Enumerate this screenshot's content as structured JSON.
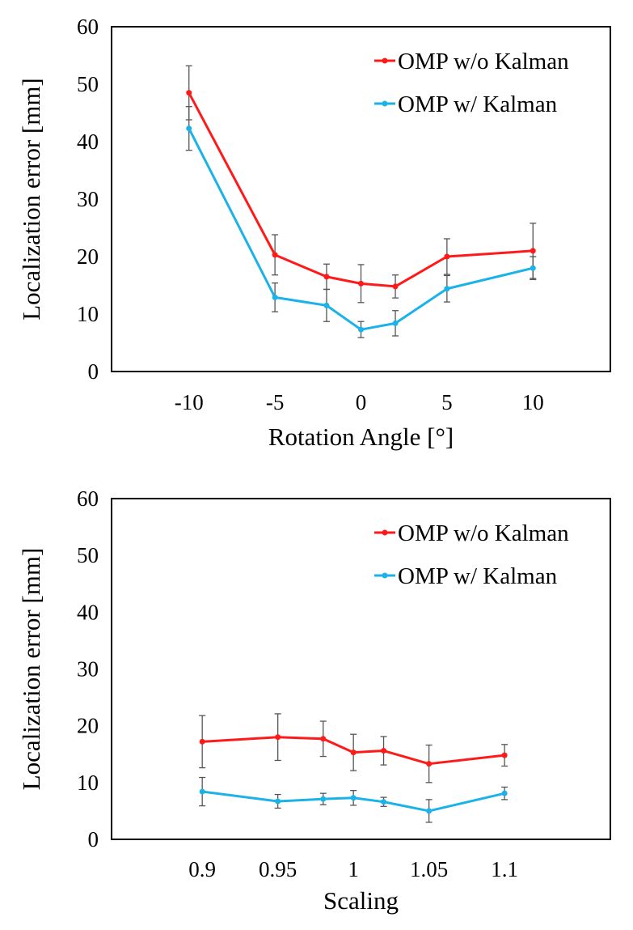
{
  "chart_data": [
    {
      "type": "line",
      "xlabel": "Rotation Angle [°]",
      "ylabel": "Localization error [mm]",
      "ylim": [
        0,
        60
      ],
      "yticks": [
        0,
        10,
        20,
        30,
        40,
        50,
        60
      ],
      "xlim": [
        -14.5,
        14.5
      ],
      "xticks": [
        -10,
        -5,
        0,
        5,
        10
      ],
      "grid": false,
      "legend_position": "top-right",
      "series": [
        {
          "name": "OMP w/o Kalman",
          "color": "#ff1a1a",
          "x": [
            -10,
            -5,
            -2,
            0,
            2,
            5,
            10
          ],
          "values": [
            48.5,
            20.3,
            16.5,
            15.3,
            14.8,
            20.0,
            21.0
          ],
          "errors": [
            4.7,
            3.5,
            2.2,
            3.3,
            2.0,
            3.1,
            4.8
          ]
        },
        {
          "name": "OMP w/ Kalman",
          "color": "#1ab2e8",
          "x": [
            -10,
            -5,
            -2,
            0,
            2,
            5,
            10
          ],
          "values": [
            42.3,
            12.9,
            11.5,
            7.3,
            8.4,
            14.4,
            18.0
          ],
          "errors": [
            3.8,
            2.5,
            2.8,
            1.4,
            2.2,
            2.3,
            2.0
          ]
        }
      ]
    },
    {
      "type": "line",
      "xlabel": "Scaling",
      "ylabel": "Localization error [mm]",
      "ylim": [
        0,
        60
      ],
      "yticks": [
        0,
        10,
        20,
        30,
        40,
        50,
        60
      ],
      "xlim": [
        0.84,
        1.17
      ],
      "xticks": [
        0.9,
        0.95,
        1,
        1.05,
        1.1
      ],
      "grid": false,
      "legend_position": "top-right",
      "series": [
        {
          "name": "OMP w/o Kalman",
          "color": "#ff1a1a",
          "x": [
            0.9,
            0.95,
            0.98,
            1.0,
            1.02,
            1.05,
            1.1
          ],
          "values": [
            17.2,
            18.0,
            17.7,
            15.3,
            15.6,
            13.3,
            14.8
          ],
          "errors": [
            4.6,
            4.1,
            3.1,
            3.2,
            2.5,
            3.3,
            1.9
          ]
        },
        {
          "name": "OMP w/ Kalman",
          "color": "#1ab2e8",
          "x": [
            0.9,
            0.95,
            0.98,
            1.0,
            1.02,
            1.05,
            1.1
          ],
          "values": [
            8.4,
            6.7,
            7.1,
            7.3,
            6.6,
            5.0,
            8.1
          ],
          "errors": [
            2.5,
            1.2,
            1.0,
            1.3,
            0.8,
            2.0,
            1.1
          ]
        }
      ]
    }
  ]
}
